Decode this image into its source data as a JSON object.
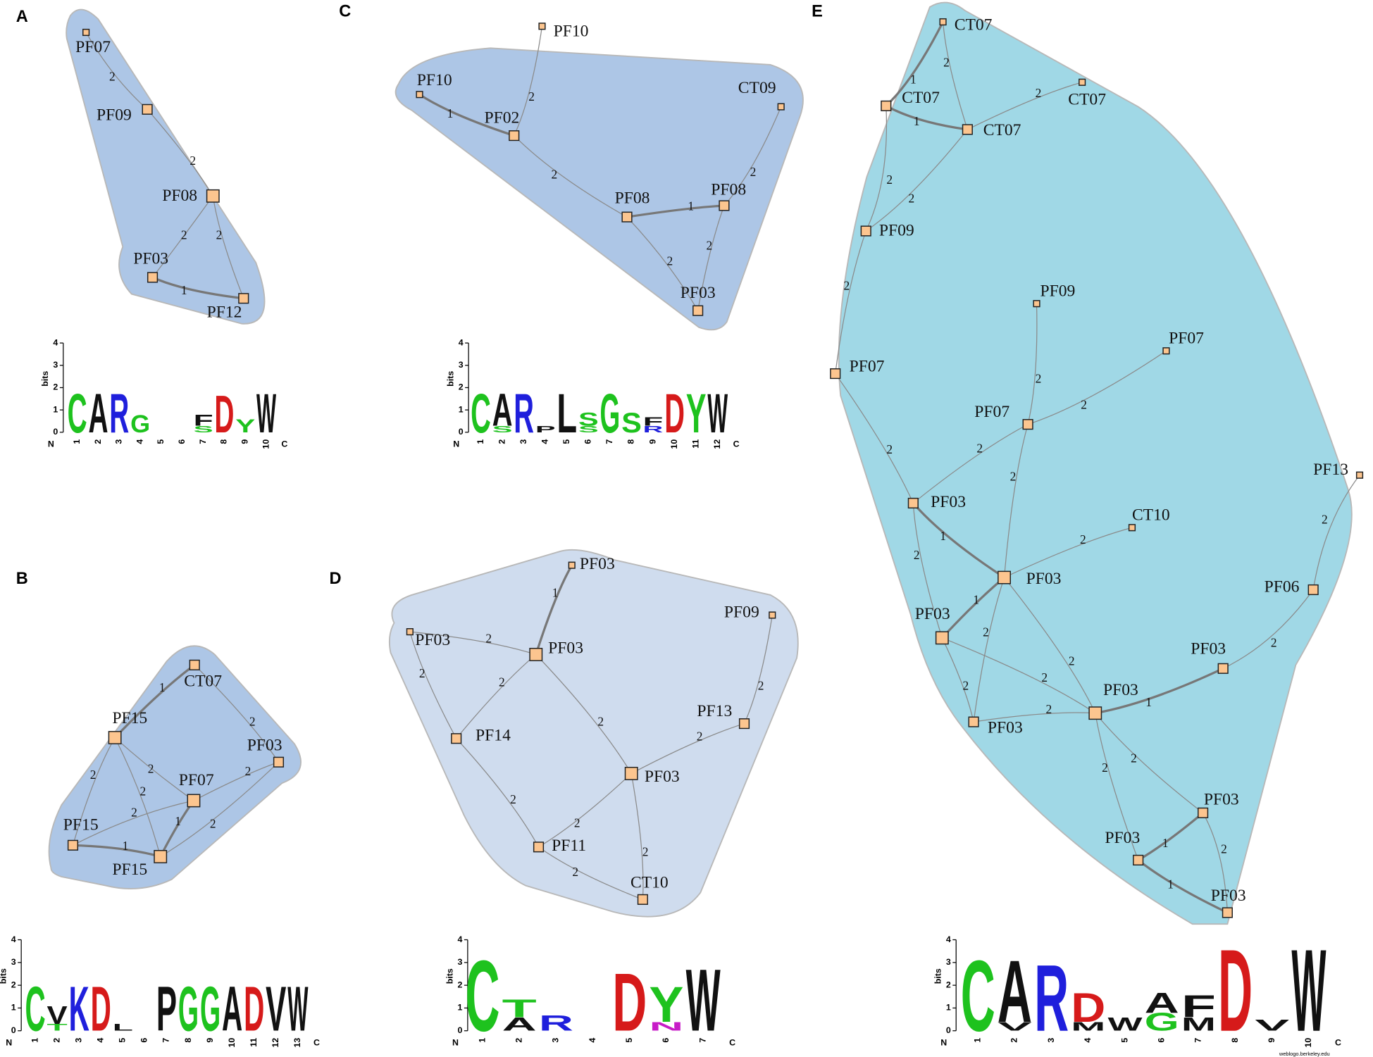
{
  "panels": [
    {
      "label": "A",
      "nodes": [
        "PF07",
        "PF09",
        "PF08",
        "PF03",
        "PF12"
      ],
      "edges": [
        "2",
        "2",
        "2",
        "2",
        "1"
      ],
      "logo": {
        "ylabel": "bits",
        "yticks": [
          0,
          1,
          2,
          3,
          4
        ],
        "n_label": "N",
        "c_label": "C",
        "positions": [
          "1",
          "2",
          "3",
          "4",
          "5",
          "6",
          "7",
          "8",
          "9",
          "10"
        ],
        "columns": [
          [
            {
              "char": "C",
              "bits": 1.8
            }
          ],
          [
            {
              "char": "A",
              "bits": 1.8
            }
          ],
          [
            {
              "char": "R",
              "bits": 1.8
            }
          ],
          [
            {
              "char": "G",
              "bits": 0.8
            }
          ],
          [],
          [],
          [
            {
              "char": "S",
              "bits": 0.3
            },
            {
              "char": "F",
              "bits": 0.5
            }
          ],
          [
            {
              "char": "D",
              "bits": 1.7
            }
          ],
          [
            {
              "char": "Y",
              "bits": 0.6
            }
          ],
          [
            {
              "char": "W",
              "bits": 1.8
            }
          ]
        ]
      }
    },
    {
      "label": "B",
      "nodes": [
        "CT07",
        "PF15",
        "PF03",
        "PF07",
        "PF15",
        "PF15"
      ],
      "edges": [
        "1",
        "2",
        "2",
        "2",
        "2",
        "2",
        "2",
        "2",
        "1",
        "1"
      ],
      "logo": {
        "ylabel": "bits",
        "yticks": [
          0,
          1,
          2,
          3,
          4
        ],
        "n_label": "N",
        "c_label": "C",
        "positions": [
          "1",
          "2",
          "3",
          "4",
          "5",
          "6",
          "7",
          "8",
          "9",
          "10",
          "11",
          "12",
          "13"
        ],
        "columns": [
          [
            {
              "char": "C",
              "bits": 2.0
            }
          ],
          [
            {
              "char": "T",
              "bits": 0.3
            },
            {
              "char": "V",
              "bits": 0.8
            }
          ],
          [
            {
              "char": "K",
              "bits": 2.0
            }
          ],
          [
            {
              "char": "D",
              "bits": 2.0
            }
          ],
          [
            {
              "char": "L",
              "bits": 0.3
            }
          ],
          [],
          [
            {
              "char": "P",
              "bits": 2.0
            }
          ],
          [
            {
              "char": "G",
              "bits": 2.0
            }
          ],
          [
            {
              "char": "G",
              "bits": 2.0
            }
          ],
          [
            {
              "char": "A",
              "bits": 2.0
            }
          ],
          [
            {
              "char": "D",
              "bits": 2.0
            }
          ],
          [
            {
              "char": "V",
              "bits": 2.0
            }
          ],
          [
            {
              "char": "W",
              "bits": 2.0
            }
          ]
        ]
      }
    },
    {
      "label": "C",
      "nodes": [
        "PF10",
        "PF10",
        "PF02",
        "CT09",
        "PF08",
        "PF08",
        "PF03"
      ],
      "edges": [
        "2",
        "1",
        "2",
        "2",
        "1",
        "2",
        "2"
      ],
      "logo": {
        "ylabel": "bits",
        "yticks": [
          0,
          1,
          2,
          3,
          4
        ],
        "n_label": "N",
        "c_label": "C",
        "positions": [
          "1",
          "2",
          "3",
          "4",
          "5",
          "6",
          "7",
          "8",
          "9",
          "10",
          "11",
          "12"
        ],
        "columns": [
          [
            {
              "char": "C",
              "bits": 1.8
            }
          ],
          [
            {
              "char": "S",
              "bits": 0.3
            },
            {
              "char": "A",
              "bits": 1.5
            }
          ],
          [
            {
              "char": "R",
              "bits": 1.8
            }
          ],
          [
            {
              "char": "P",
              "bits": 0.3
            }
          ],
          [
            {
              "char": "L",
              "bits": 1.8
            }
          ],
          [
            {
              "char": "S",
              "bits": 0.3
            },
            {
              "char": "S",
              "bits": 0.6
            }
          ],
          [
            {
              "char": "G",
              "bits": 1.8
            }
          ],
          [
            {
              "char": "S",
              "bits": 0.9
            }
          ],
          [
            {
              "char": "R",
              "bits": 0.3
            },
            {
              "char": "F",
              "bits": 0.4
            }
          ],
          [
            {
              "char": "D",
              "bits": 1.8
            }
          ],
          [
            {
              "char": "Y",
              "bits": 1.8
            }
          ],
          [
            {
              "char": "W",
              "bits": 1.8
            }
          ]
        ]
      }
    },
    {
      "label": "D",
      "nodes": [
        "PF03",
        "PF03",
        "PF09",
        "PF03",
        "PF14",
        "PF13",
        "PF03",
        "PF11",
        "CT10"
      ],
      "edges": [
        "1",
        "2",
        "2",
        "2",
        "2",
        "2",
        "2",
        "2",
        "2",
        "2",
        "2"
      ],
      "logo": {
        "ylabel": "bits",
        "yticks": [
          0,
          1,
          2,
          3,
          4
        ],
        "n_label": "N",
        "c_label": "C",
        "positions": [
          "1",
          "2",
          "3",
          "4",
          "5",
          "6",
          "7"
        ],
        "columns": [
          [
            {
              "char": "C",
              "bits": 3.2
            }
          ],
          [
            {
              "char": "A",
              "bits": 0.6
            },
            {
              "char": "T",
              "bits": 0.8
            }
          ],
          [
            {
              "char": "R",
              "bits": 0.7
            }
          ],
          [],
          [
            {
              "char": "D",
              "bits": 2.6
            }
          ],
          [
            {
              "char": "N",
              "bits": 0.4
            },
            {
              "char": "Y",
              "bits": 1.6
            }
          ],
          [
            {
              "char": "W",
              "bits": 2.8
            }
          ]
        ]
      }
    },
    {
      "label": "E",
      "nodes": [
        "CT07",
        "CT07",
        "CT07",
        "CT07",
        "PF09",
        "PF09",
        "PF07",
        "PF07",
        "PF07",
        "PF13",
        "PF03",
        "CT10",
        "PF03",
        "PF06",
        "PF03",
        "PF03",
        "PF03",
        "PF03",
        "PF03",
        "PF03",
        "PF03"
      ],
      "edges": [
        "1",
        "2",
        "1",
        "2",
        "2",
        "2",
        "2",
        "2",
        "2",
        "2",
        "2",
        "2",
        "1",
        "2",
        "2",
        "1",
        "2",
        "2",
        "2",
        "2",
        "2",
        "1",
        "2",
        "2",
        "2",
        "2",
        "1",
        "2",
        "1"
      ],
      "logo": {
        "ylabel": "bits",
        "yticks": [
          0,
          1,
          2,
          3,
          4
        ],
        "n_label": "N",
        "c_label": "C",
        "positions": [
          "1",
          "2",
          "3",
          "4",
          "5",
          "6",
          "7",
          "8",
          "9",
          "10"
        ],
        "columns": [
          [
            {
              "char": "C",
              "bits": 3.2
            }
          ],
          [
            {
              "char": "V",
              "bits": 0.4
            },
            {
              "char": "A",
              "bits": 2.8
            }
          ],
          [
            {
              "char": "R",
              "bits": 3.0
            }
          ],
          [
            {
              "char": "M",
              "bits": 0.4
            },
            {
              "char": "D",
              "bits": 1.3
            }
          ],
          [
            {
              "char": "W",
              "bits": 0.6
            }
          ],
          [
            {
              "char": "G",
              "bits": 0.8
            },
            {
              "char": "A",
              "bits": 0.9
            }
          ],
          [
            {
              "char": "M",
              "bits": 0.6
            },
            {
              "char": "F",
              "bits": 1.0
            }
          ],
          [
            {
              "char": "D",
              "bits": 3.7
            }
          ],
          [
            {
              "char": "V",
              "bits": 0.5
            }
          ],
          [
            {
              "char": "W",
              "bits": 3.7
            }
          ]
        ],
        "credit": "weblogo.berkeley.edu"
      }
    }
  ]
}
